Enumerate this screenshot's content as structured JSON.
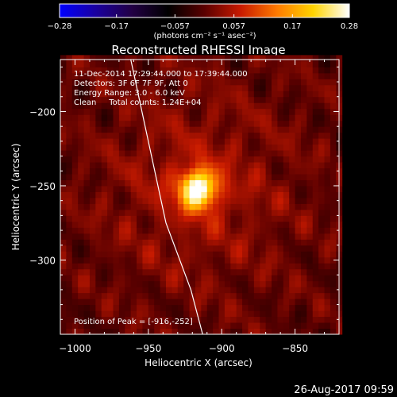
{
  "chart_data": {
    "type": "heatmap",
    "title": "Reconstructed RHESSI Image",
    "xlabel": "Heliocentric X (arcsec)",
    "ylabel": "Heliocentric Y (arcsec)",
    "xlim": [
      -1010,
      -820
    ],
    "ylim": [
      -350,
      -165
    ],
    "x_ticks": [
      -1000,
      -950,
      -900,
      -850
    ],
    "x_tick_labels": [
      "−1000",
      "−950",
      "−900",
      "−850"
    ],
    "y_ticks": [
      -200,
      -250,
      -300
    ],
    "y_tick_labels": [
      "−200",
      "−250",
      "−300"
    ],
    "colorbar": {
      "min": -0.28,
      "max": 0.28,
      "ticks": [
        -0.28,
        -0.17,
        -0.057,
        0.057,
        0.17,
        0.28
      ],
      "tick_labels": [
        "−0.28",
        "−0.17",
        "−0.057",
        "0.057",
        "0.17",
        "0.28"
      ],
      "units_label": "(photons cm⁻² s⁻¹ asec⁻²)",
      "colors": [
        "#0000ff",
        "#1a00a0",
        "#220044",
        "#000000",
        "#5a0000",
        "#c81a00",
        "#ff7a00",
        "#ffd400",
        "#ffffff"
      ]
    },
    "annotations": [
      "11-Dec-2014 17:29:44.000 to 17:39:44.000",
      "Detectors: 3F 6F 7F 9F, Att 0",
      "Energy Range: 3.0 - 6.0 keV",
      "Clean     Total counts: 1.24E+04"
    ],
    "peak_label": "Position of Peak = [-916,-252]",
    "peak": {
      "x": -916,
      "y": -252,
      "value": 0.28
    },
    "limb_curve": [
      [
        -962,
        -165
      ],
      [
        -950,
        -220
      ],
      [
        -938,
        -275
      ],
      [
        -921,
        -320
      ],
      [
        -913,
        -350
      ]
    ]
  },
  "footer": {
    "timestamp": "26-Aug-2017 09:59"
  }
}
